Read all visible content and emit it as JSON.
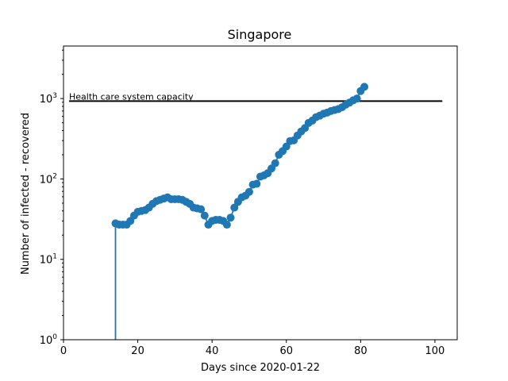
{
  "chart_data": {
    "type": "line",
    "title": "Singapore",
    "xlabel": "Days since 2020-01-22",
    "ylabel": "Number of infected - recovered",
    "xlim": [
      0,
      106
    ],
    "ylim": [
      1,
      4500
    ],
    "yscale": "log",
    "grid": false,
    "x_ticks": [
      0,
      20,
      40,
      60,
      80,
      100
    ],
    "y_ticks": [
      {
        "value": 1,
        "base": "10",
        "exp": "0"
      },
      {
        "value": 10,
        "base": "10",
        "exp": "1"
      },
      {
        "value": 100,
        "base": "10",
        "exp": "2"
      },
      {
        "value": 1000,
        "base": "10",
        "exp": "3"
      }
    ],
    "series": [
      {
        "color": "#1f77b4",
        "marker": "circle",
        "points": [
          [
            14,
            1
          ],
          [
            14,
            28
          ],
          [
            15,
            27
          ],
          [
            16,
            27
          ],
          [
            17,
            27
          ],
          [
            18,
            30
          ],
          [
            19,
            35
          ],
          [
            20,
            39
          ],
          [
            21,
            40
          ],
          [
            22,
            41
          ],
          [
            23,
            44
          ],
          [
            24,
            49
          ],
          [
            25,
            53
          ],
          [
            26,
            55
          ],
          [
            27,
            57
          ],
          [
            28,
            59
          ],
          [
            29,
            56
          ],
          [
            30,
            56
          ],
          [
            31,
            56
          ],
          [
            32,
            55
          ],
          [
            33,
            52
          ],
          [
            34,
            49
          ],
          [
            35,
            44
          ],
          [
            36,
            43
          ],
          [
            37,
            42
          ],
          [
            38,
            35
          ],
          [
            39,
            27
          ],
          [
            40,
            30
          ],
          [
            41,
            31
          ],
          [
            42,
            31
          ],
          [
            43,
            30
          ],
          [
            44,
            27
          ],
          [
            45,
            33
          ],
          [
            46,
            44
          ],
          [
            47,
            52
          ],
          [
            48,
            59
          ],
          [
            49,
            62
          ],
          [
            50,
            69
          ],
          [
            51,
            85
          ],
          [
            52,
            87
          ],
          [
            53,
            107
          ],
          [
            54,
            111
          ],
          [
            55,
            118
          ],
          [
            56,
            135
          ],
          [
            57,
            157
          ],
          [
            58,
            200
          ],
          [
            59,
            222
          ],
          [
            60,
            253
          ],
          [
            61,
            296
          ],
          [
            62,
            302
          ],
          [
            63,
            347
          ],
          [
            64,
            390
          ],
          [
            65,
            429
          ],
          [
            66,
            498
          ],
          [
            67,
            532
          ],
          [
            68,
            587
          ],
          [
            69,
            613
          ],
          [
            70,
            648
          ],
          [
            71,
            669
          ],
          [
            72,
            700
          ],
          [
            73,
            720
          ],
          [
            74,
            740
          ],
          [
            75,
            780
          ],
          [
            76,
            840
          ],
          [
            77,
            890
          ],
          [
            78,
            950
          ],
          [
            79,
            1000
          ],
          [
            80,
            1240
          ],
          [
            81,
            1400
          ]
        ]
      }
    ],
    "reference_line": {
      "label": "Health care system capacity",
      "y": 930,
      "x_start": 1.5,
      "x_end": 102,
      "color": "#000000"
    }
  }
}
